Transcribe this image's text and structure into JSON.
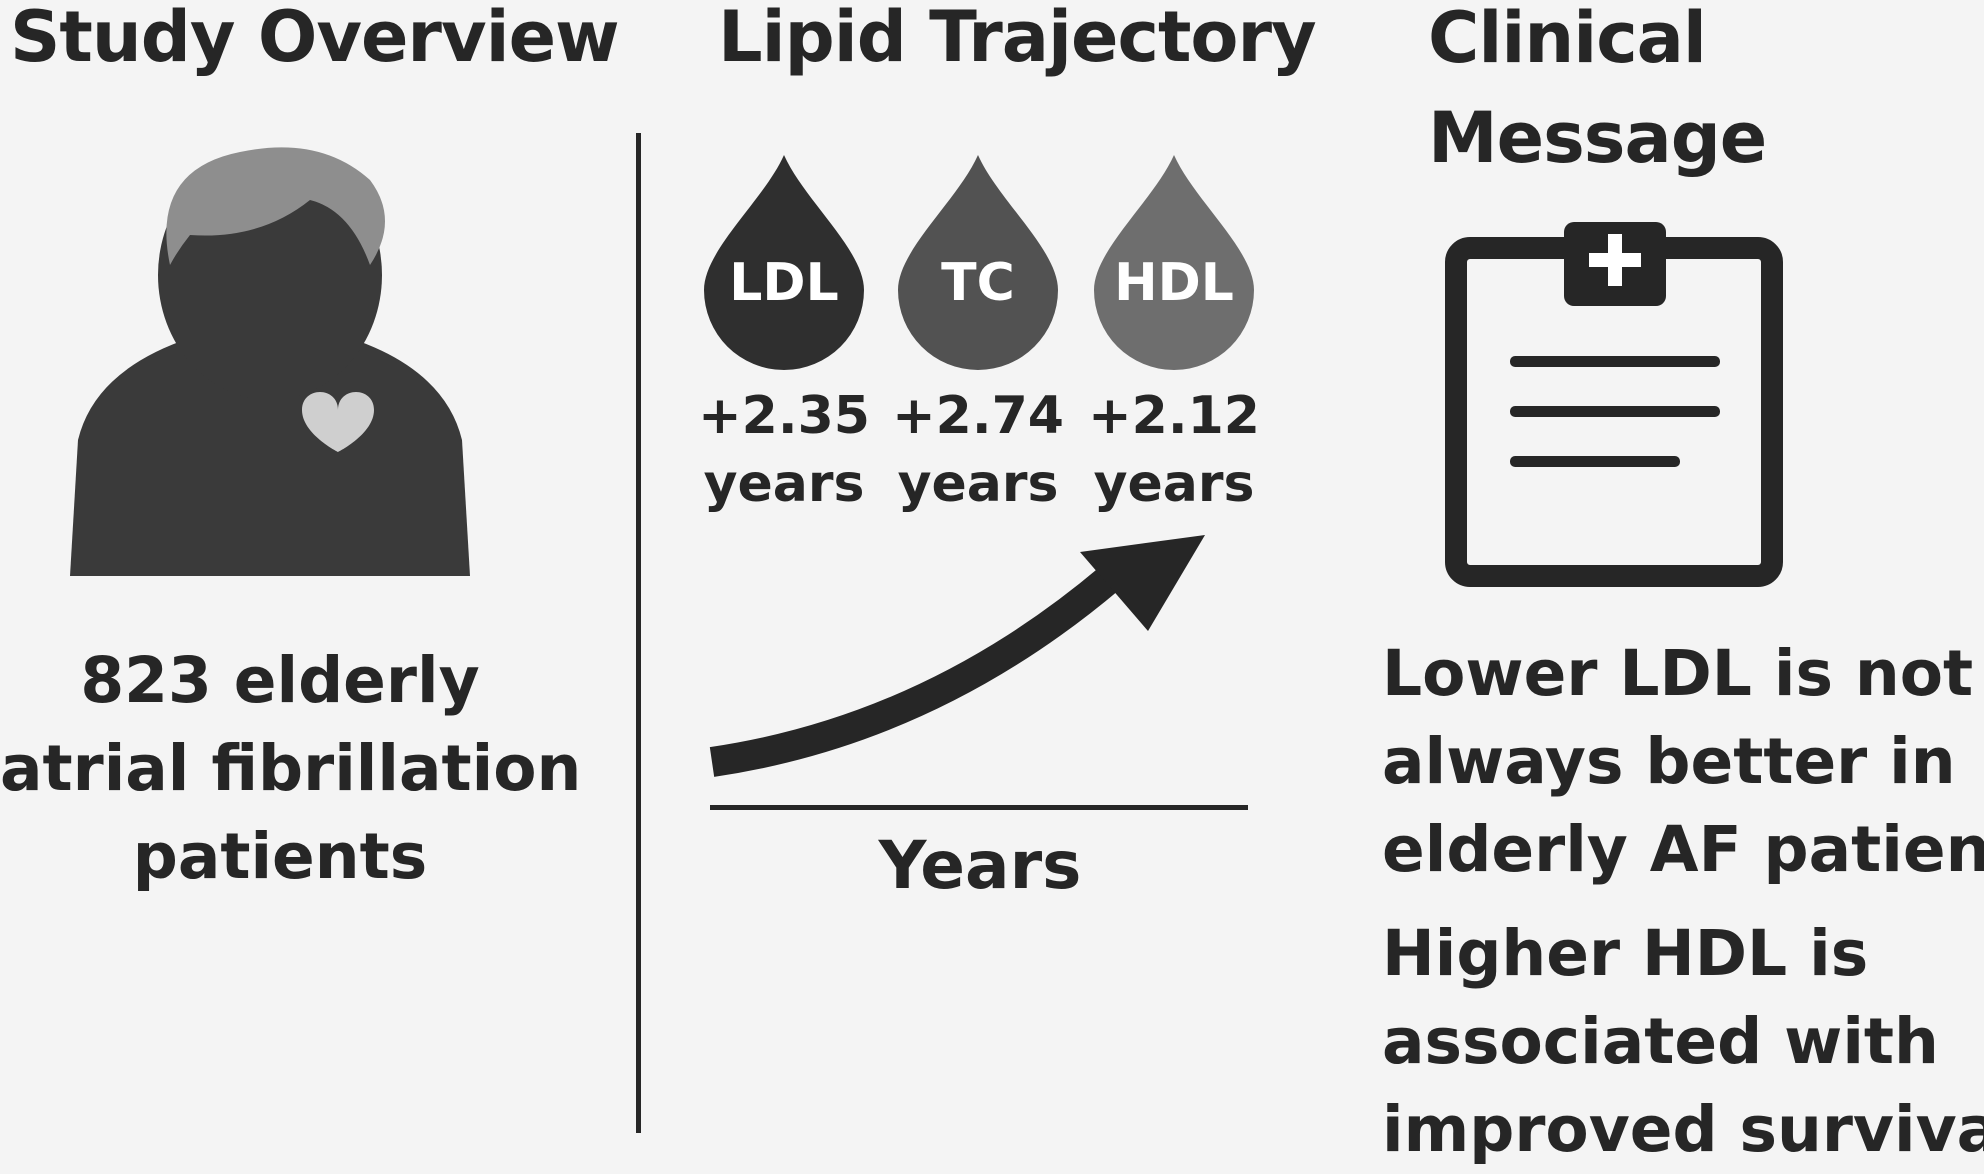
{
  "columns": {
    "overview": {
      "heading": "Study Overview",
      "description_lines": [
        "823 elderly",
        "atrial fibrillation",
        "patients"
      ]
    },
    "lipids": {
      "heading": "Lipid Trajectory",
      "drops": [
        {
          "label": "LDL",
          "value": "+2.35",
          "unit": "years",
          "color": "#2f2f2f"
        },
        {
          "label": "TC",
          "value": "+2.74",
          "unit": "years",
          "color": "#525252"
        },
        {
          "label": "HDL",
          "value": "+2.12",
          "unit": "years",
          "color": "#6e6e6e"
        }
      ],
      "axis_label": "Years"
    },
    "message": {
      "heading_lines": [
        "Clinical",
        "Message"
      ],
      "point1_lines": [
        "Lower LDL is not",
        "always better in",
        "elderly AF patients"
      ],
      "point2_lines": [
        "Higher HDL is",
        "associated with",
        "improved survival"
      ]
    }
  },
  "icons": {
    "patient": "person-with-heart-icon",
    "drop": "blood-drop-icon",
    "trend": "rising-arrow-icon",
    "clipboard": "medical-clipboard-icon"
  },
  "colors": {
    "background": "#f4f4f4",
    "text": "#262626",
    "person_body": "#3a3a3a",
    "person_hair": "#8e8e8e",
    "person_neck": "#6a6a6a",
    "heart": "#cfcfcf"
  }
}
